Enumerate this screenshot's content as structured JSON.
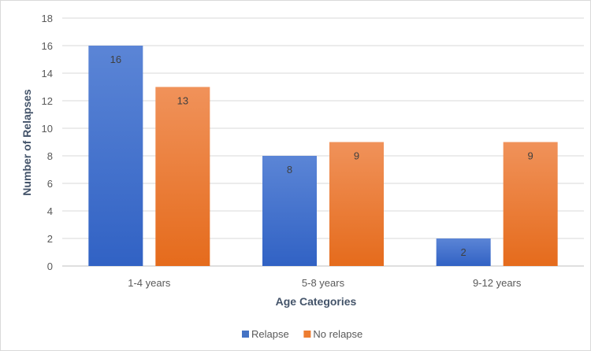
{
  "chart_data": {
    "type": "bar",
    "title": "",
    "categories": [
      "1-4 years",
      "5-8 years",
      "9-12 years"
    ],
    "series": [
      {
        "name": "Relapse",
        "values": [
          16,
          8,
          2
        ],
        "color": "#4472c4"
      },
      {
        "name": "No relapse",
        "values": [
          13,
          9,
          9
        ],
        "color": "#ed7d31"
      }
    ],
    "xlabel": "Age Categories",
    "ylabel": "Number of Relapses",
    "ylim": [
      0,
      18
    ],
    "yticks": [
      0,
      2,
      4,
      6,
      8,
      10,
      12,
      14,
      16,
      18
    ],
    "grid": true,
    "legend": "bottom"
  }
}
